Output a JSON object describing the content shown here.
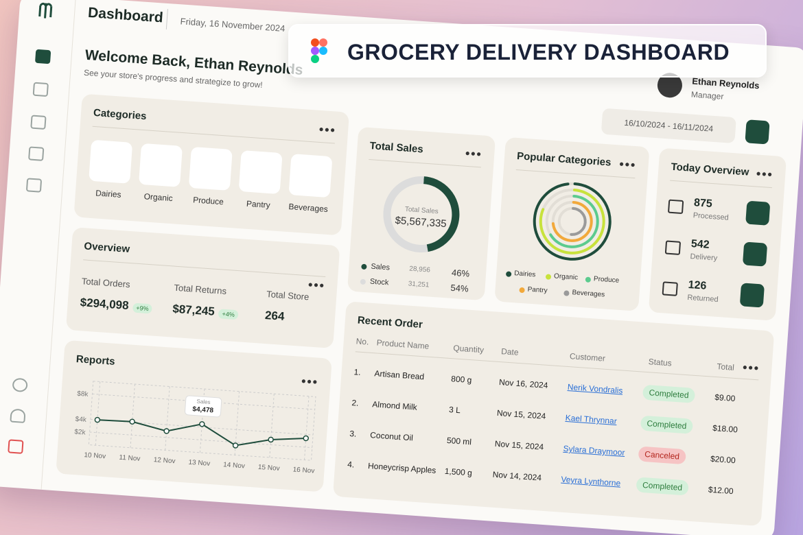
{
  "header": {
    "title": "Dashboard",
    "date": "Friday, 16 November 2024"
  },
  "banner": {
    "title": "GROCERY DELIVERY DASHBOARD"
  },
  "welcome": {
    "title": "Welcome Back, Ethan Reynolds",
    "subtitle": "See your store's progress and strategize to grow!"
  },
  "profile": {
    "name": "Ethan Reynolds",
    "role": "Manager"
  },
  "date_range": "16/10/2024 - 16/11/2024",
  "categories": {
    "title": "Categories",
    "items": [
      {
        "name": "Dairies",
        "color": "#f0a24a"
      },
      {
        "name": "Organic",
        "color": "#f07a2a"
      },
      {
        "name": "Produce",
        "color": "#f5c52c"
      },
      {
        "name": "Pantry",
        "color": "#b8332c"
      },
      {
        "name": "Beverages",
        "color": "#f26b3a"
      }
    ]
  },
  "overview": {
    "title": "Overview",
    "stats": [
      {
        "label": "Total Orders",
        "value": "$294,098",
        "change": "+9%"
      },
      {
        "label": "Total Returns",
        "value": "$87,245",
        "change": "+4%"
      },
      {
        "label": "Total Store",
        "value": "264"
      }
    ]
  },
  "reports": {
    "title": "Reports",
    "chart_data": {
      "type": "line",
      "categories": [
        "10 Nov",
        "11 Nov",
        "12 Nov",
        "13 Nov",
        "14 Nov",
        "15 Nov",
        "16 Nov"
      ],
      "values": [
        4000,
        4100,
        3000,
        4478,
        1500,
        2800,
        3400
      ],
      "ylim": [
        0,
        10000
      ],
      "yticks": [
        {
          "value": 2000,
          "label": "$2k"
        },
        {
          "value": 4000,
          "label": "$4k"
        },
        {
          "value": 8000,
          "label": "$8k"
        }
      ],
      "grid": true,
      "color": "#1f4d3c",
      "tooltip": {
        "label": "Sales",
        "value": "$4,478"
      }
    }
  },
  "total_sales": {
    "title": "Total Sales",
    "center_label": "Total Sales",
    "center_value": "$5,567,335",
    "items": [
      {
        "name": "Sales",
        "count": "28,956",
        "percent": 46,
        "percent_label": "46%",
        "color": "#1f4d3c"
      },
      {
        "name": "Stock",
        "count": "31,251",
        "percent": 54,
        "percent_label": "54%",
        "color": "#dcdcdc"
      }
    ]
  },
  "popular": {
    "title": "Popular Categories",
    "legend": [
      {
        "name": "Dairies",
        "color": "#1f4d3c"
      },
      {
        "name": "Organic",
        "color": "#c8e23c"
      },
      {
        "name": "Produce",
        "color": "#5ccb8e"
      },
      {
        "name": "Pantry",
        "color": "#f2a93b"
      },
      {
        "name": "Beverages",
        "color": "#9a9a9a"
      }
    ]
  },
  "today": {
    "title": "Today Overview",
    "items": [
      {
        "value": "875",
        "label": "Processed"
      },
      {
        "value": "542",
        "label": "Delivery"
      },
      {
        "value": "126",
        "label": "Returned"
      }
    ]
  },
  "orders": {
    "title": "Recent Order",
    "columns": [
      "No.",
      "Product Name",
      "Quantity",
      "Date",
      "Customer",
      "Status",
      "Total"
    ],
    "rows": [
      [
        "1.",
        "Artisan Bread",
        "800 g",
        "Nov 16, 2024",
        "Nerik Vondralis",
        "Completed",
        "$9.00"
      ],
      [
        "2.",
        "Almond Milk",
        "3 L",
        "Nov 15, 2024",
        "Kael Thrynnar",
        "Completed",
        "$18.00"
      ],
      [
        "3.",
        "Coconut Oil",
        "500 ml",
        "Nov 15, 2024",
        "Sylara Draymoor",
        "Canceled",
        "$20.00"
      ],
      [
        "4.",
        "Honeycrisp Apples",
        "1,500 g",
        "Nov 14, 2024",
        "Veyra Lynthorne",
        "Completed",
        "$12.00"
      ]
    ],
    "status_colors": {
      "Completed": [
        "#d4f0da",
        "#2e7d3e"
      ],
      "Canceled": [
        "#f6c4c4",
        "#b3261e"
      ]
    }
  }
}
